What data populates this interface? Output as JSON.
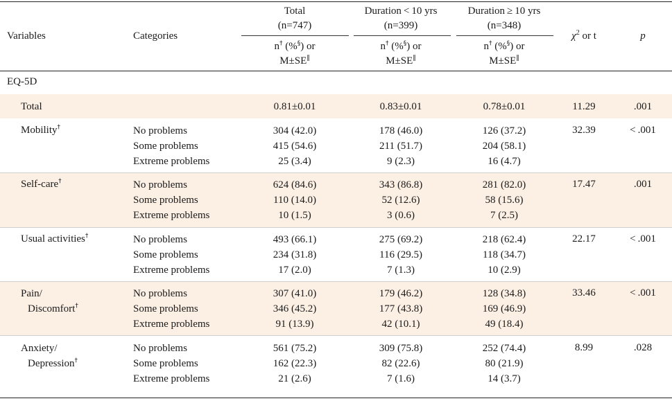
{
  "table": {
    "headers": {
      "variables": "Variables",
      "categories": "Categories",
      "total": {
        "line1": "Total",
        "line2": "(n=747)"
      },
      "lt10": {
        "line1": "Duration < 10 yrs",
        "line2": "(n=399)"
      },
      "ge10": {
        "line1": "Duration ≥ 10 yrs",
        "line2": "(n=348)"
      },
      "sub_line1_n": "n",
      "sub_line1_pct": "(%",
      "sub_line1_or": ") or",
      "sub_line2": "M±SE",
      "chi": "χ",
      "chi_sup": "2",
      "chi_rest": " or t",
      "p": "p"
    },
    "symbols": {
      "dagger": "†",
      "section": "§",
      "parallel": "‖"
    },
    "section_label": "EQ-5D",
    "total_row": {
      "label": "Total",
      "total": "0.81±0.01",
      "lt10": "0.83±0.01",
      "ge10": "0.78±0.01",
      "stat": "11.29",
      "p": ".001"
    },
    "groups": [
      {
        "label1": "Mobility",
        "label2": "",
        "stat": "32.39",
        "p": "< .001",
        "rows": [
          {
            "cat": "No problems",
            "total": "304 (42.0)",
            "lt10": "178 (46.0)",
            "ge10": "126 (37.2)"
          },
          {
            "cat": "Some problems",
            "total": "415 (54.6)",
            "lt10": "211 (51.7)",
            "ge10": "204 (58.1)"
          },
          {
            "cat": "Extreme problems",
            "total": "25 (3.4)",
            "lt10": "9 (2.3)",
            "ge10": "16 (4.7)"
          }
        ]
      },
      {
        "label1": "Self-care",
        "label2": "",
        "stat": "17.47",
        "p": ".001",
        "rows": [
          {
            "cat": "No problems",
            "total": "624 (84.6)",
            "lt10": "343 (86.8)",
            "ge10": "281 (82.0)"
          },
          {
            "cat": "Some problems",
            "total": "110 (14.0)",
            "lt10": "52 (12.6)",
            "ge10": "58 (15.6)"
          },
          {
            "cat": "Extreme problems",
            "total": "10 (1.5)",
            "lt10": "3 (0.6)",
            "ge10": "7 (2.5)"
          }
        ]
      },
      {
        "label1": "Usual activities",
        "label2": "",
        "stat": "22.17",
        "p": "< .001",
        "rows": [
          {
            "cat": "No problems",
            "total": "493 (66.1)",
            "lt10": "275 (69.2)",
            "ge10": "218 (62.4)"
          },
          {
            "cat": "Some problems",
            "total": "234 (31.8)",
            "lt10": "116 (29.5)",
            "ge10": "118 (34.7)"
          },
          {
            "cat": "Extreme problems",
            "total": "17 (2.0)",
            "lt10": "7 (1.3)",
            "ge10": "10 (2.9)"
          }
        ]
      },
      {
        "label1": "Pain/",
        "label2": "Discomfort",
        "stat": "33.46",
        "p": "< .001",
        "rows": [
          {
            "cat": "No problems",
            "total": "307 (41.0)",
            "lt10": "179 (46.2)",
            "ge10": "128 (34.8)"
          },
          {
            "cat": "Some problems",
            "total": "346 (45.2)",
            "lt10": "177 (43.8)",
            "ge10": "169 (46.9)"
          },
          {
            "cat": "Extreme problems",
            "total": "91 (13.9)",
            "lt10": "42 (10.1)",
            "ge10": "49 (18.4)"
          }
        ]
      },
      {
        "label1": "Anxiety/",
        "label2": "Depression",
        "stat": "8.99",
        "p": ".028",
        "rows": [
          {
            "cat": "No problems",
            "total": "561 (75.2)",
            "lt10": "309 (75.8)",
            "ge10": "252 (74.4)"
          },
          {
            "cat": "Some problems",
            "total": "162 (22.3)",
            "lt10": "82 (22.6)",
            "ge10": "80 (21.9)"
          },
          {
            "cat": "Extreme problems",
            "total": "21 (2.6)",
            "lt10": "7 (1.6)",
            "ge10": "14 (3.7)"
          }
        ]
      }
    ],
    "colors": {
      "band": "#fcefe4",
      "rule": "#222222",
      "text": "#1a1a1a"
    }
  }
}
